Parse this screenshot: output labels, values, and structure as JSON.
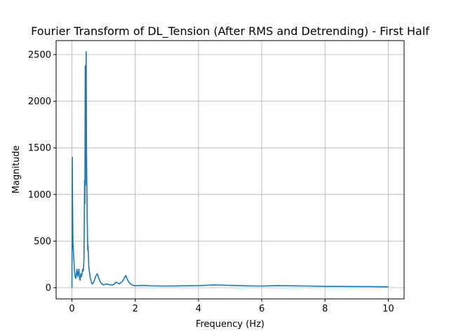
{
  "chart_data": {
    "type": "line",
    "title": "Fourier Transform of DL_Tension (After RMS and Detrending) - First Half",
    "xlabel": "Frequency (Hz)",
    "ylabel": "Magnitude",
    "xlim": [
      -0.5,
      10.5
    ],
    "ylim": [
      -120,
      2650
    ],
    "xticks": [
      0,
      2,
      4,
      6,
      8,
      10
    ],
    "yticks": [
      0,
      500,
      1000,
      1500,
      2000,
      2500
    ],
    "grid": true,
    "line_color": "#1f77b4",
    "series": [
      {
        "x": [
          0.0,
          0.01,
          0.02,
          0.03,
          0.04,
          0.05,
          0.06,
          0.07,
          0.08,
          0.1,
          0.12,
          0.14,
          0.16,
          0.18,
          0.2,
          0.22,
          0.24,
          0.26,
          0.28,
          0.3,
          0.32,
          0.34,
          0.36,
          0.38,
          0.4,
          0.41,
          0.42,
          0.43,
          0.44,
          0.45,
          0.46,
          0.47,
          0.48,
          0.49,
          0.5,
          0.51,
          0.52,
          0.53,
          0.54,
          0.55,
          0.56,
          0.58,
          0.6,
          0.62,
          0.65,
          0.7,
          0.75,
          0.8,
          0.85,
          0.9,
          0.95,
          1.0,
          1.1,
          1.2,
          1.3,
          1.4,
          1.5,
          1.6,
          1.7,
          1.75,
          1.8,
          1.85,
          1.9,
          2.0,
          2.2,
          2.5,
          3.0,
          3.5,
          4.0,
          4.5,
          5.0,
          5.5,
          6.0,
          6.5,
          7.0,
          7.5,
          8.0,
          8.5,
          9.0,
          9.5,
          10.0
        ],
        "y": [
          0,
          1400,
          900,
          500,
          420,
          380,
          300,
          250,
          180,
          120,
          100,
          150,
          200,
          120,
          150,
          200,
          100,
          80,
          150,
          120,
          150,
          200,
          180,
          300,
          1150,
          900,
          2380,
          1100,
          2000,
          2530,
          1500,
          1120,
          800,
          600,
          400,
          450,
          350,
          250,
          200,
          180,
          150,
          100,
          80,
          50,
          40,
          70,
          120,
          150,
          100,
          60,
          40,
          30,
          40,
          30,
          30,
          60,
          40,
          70,
          130,
          90,
          60,
          40,
          30,
          20,
          25,
          20,
          18,
          20,
          22,
          30,
          25,
          20,
          18,
          22,
          20,
          18,
          15,
          14,
          13,
          12,
          10
        ]
      }
    ]
  }
}
